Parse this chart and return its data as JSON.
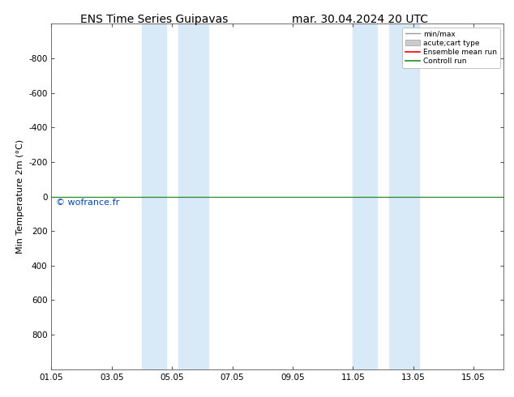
{
  "title_left": "ENS Time Series Guipavas",
  "title_right": "mar. 30.04.2024 20 UTC",
  "ylabel": "Min Temperature 2m (°C)",
  "ylim_top": -1000,
  "ylim_bottom": 1000,
  "yticks": [
    -800,
    -600,
    -400,
    -200,
    0,
    200,
    400,
    600,
    800
  ],
  "xlim_start": 0,
  "xlim_end": 15,
  "xtick_labels": [
    "01.05",
    "03.05",
    "05.05",
    "07.05",
    "09.05",
    "11.05",
    "13.05",
    "15.05"
  ],
  "xtick_positions": [
    0,
    2,
    4,
    6,
    8,
    10,
    12,
    14
  ],
  "blue_bands": [
    [
      3.0,
      3.8
    ],
    [
      4.2,
      5.2
    ],
    [
      10.0,
      10.8
    ],
    [
      11.2,
      12.2
    ]
  ],
  "blue_band_color": "#d8eaf8",
  "green_line_y": 0,
  "green_line_color": "#228B22",
  "watermark": "© wofrance.fr",
  "watermark_color": "#0044bb",
  "background_color": "#ffffff",
  "legend_entries": [
    "min/max",
    "acute;cart type",
    "Ensemble mean run",
    "Controll run"
  ],
  "legend_line_colors": [
    "#999999",
    "#cccccc",
    "#ff0000",
    "#228B22"
  ],
  "title_fontsize": 10,
  "axis_fontsize": 8,
  "tick_fontsize": 7.5
}
